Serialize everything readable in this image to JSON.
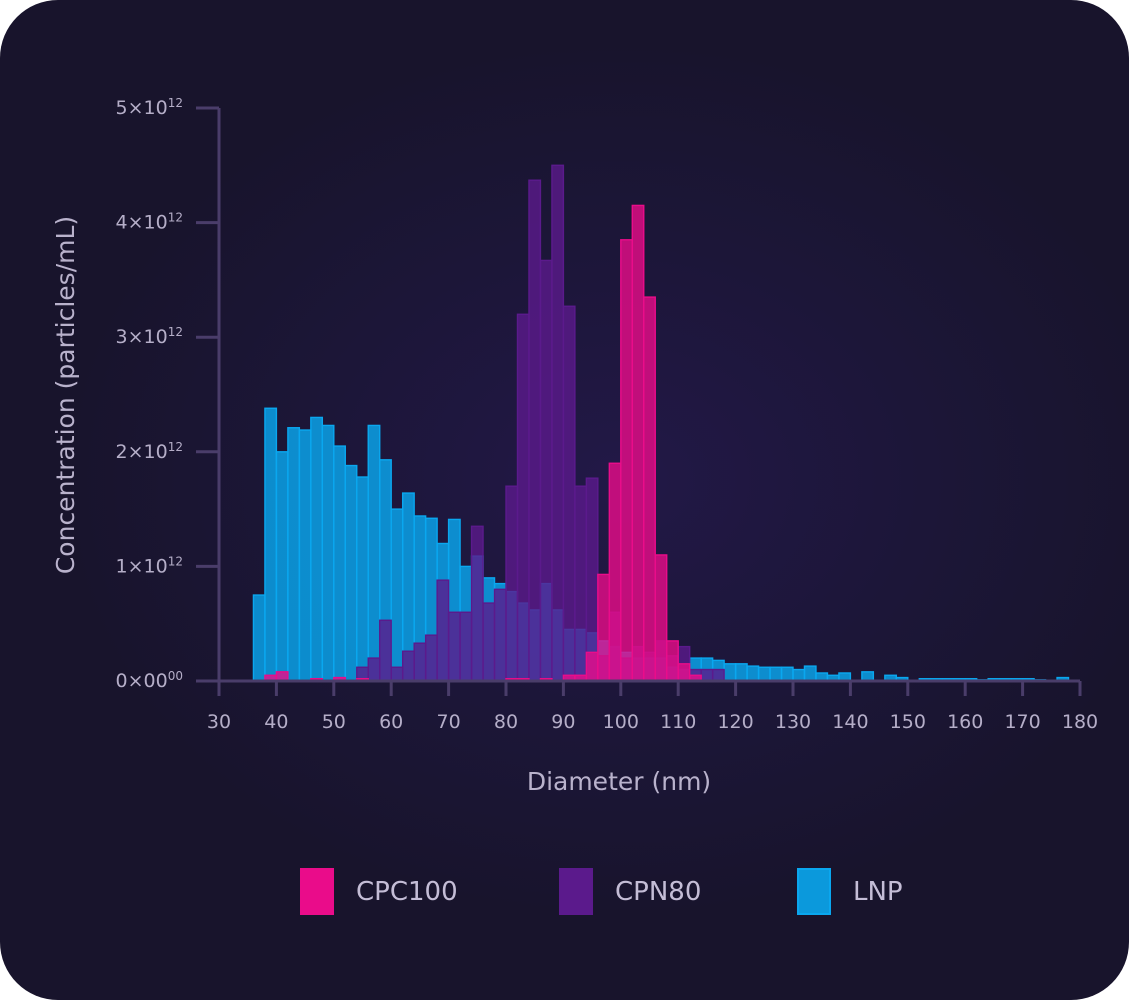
{
  "chart_data": {
    "type": "bar",
    "subtype": "overlapping histogram",
    "xlabel": "Diameter (nm)",
    "ylabel": "Concentration (particles/mL)",
    "xlim": [
      30,
      180
    ],
    "ylim": [
      0,
      5000000000000.0
    ],
    "x_ticks": [
      "30",
      "40",
      "50",
      "60",
      "70",
      "80",
      "90",
      "100",
      "110",
      "120",
      "130",
      "140",
      "150",
      "160",
      "170",
      "180"
    ],
    "y_ticks": [
      {
        "value": 0,
        "label": "0×00",
        "sup": "00"
      },
      {
        "value": 1000000000000.0,
        "label": "1×10",
        "sup": "12"
      },
      {
        "value": 2000000000000.0,
        "label": "2×10",
        "sup": "12"
      },
      {
        "value": 3000000000000.0,
        "label": "3×10",
        "sup": "12"
      },
      {
        "value": 4000000000000.0,
        "label": "4×10",
        "sup": "12"
      },
      {
        "value": 5000000000000.0,
        "label": "5×10",
        "sup": "12"
      }
    ],
    "bin_start": 36,
    "bin_width": 2,
    "legend_position": "bottom",
    "series": [
      {
        "name": "LNP",
        "color": "#0aa7ef",
        "values": [
          0.75,
          2.38,
          2.0,
          2.21,
          2.19,
          2.3,
          2.23,
          2.05,
          1.88,
          1.78,
          2.23,
          1.93,
          1.5,
          1.64,
          1.44,
          1.42,
          1.2,
          1.41,
          1.0,
          1.09,
          0.9,
          0.85,
          0.78,
          0.68,
          0.62,
          0.85,
          0.62,
          0.45,
          0.45,
          0.42,
          0.35,
          0.3,
          0.25,
          0.2,
          0.2,
          0.2,
          0.12,
          0.1,
          0.2,
          0.2,
          0.18,
          0.15,
          0.15,
          0.13,
          0.12,
          0.12,
          0.12,
          0.1,
          0.13,
          0.07,
          0.05,
          0.07,
          0.0,
          0.08,
          0.0,
          0.05,
          0.03,
          0.0,
          0.02,
          0.02,
          0.02,
          0.02,
          0.02,
          0.01,
          0.02,
          0.02,
          0.02,
          0.02,
          0.01,
          0.0,
          0.03,
          0.0,
          0.0,
          0.0,
          0.0
        ]
      },
      {
        "name": "CPN80",
        "color": "#5b1a8c",
        "values": [
          0,
          0,
          0,
          0,
          0,
          0,
          0,
          0,
          0,
          0.12,
          0.2,
          0.53,
          0.12,
          0.26,
          0.33,
          0.4,
          0.88,
          0.6,
          0.6,
          1.35,
          0.68,
          0.8,
          1.7,
          3.2,
          4.37,
          3.67,
          4.5,
          3.27,
          1.7,
          1.77,
          0.22,
          0.6,
          0.2,
          0.3,
          0.25,
          0.35,
          0.22,
          0.3,
          0.1,
          0.1,
          0.1,
          0,
          0,
          0,
          0,
          0,
          0,
          0,
          0,
          0,
          0,
          0,
          0,
          0,
          0,
          0,
          0,
          0,
          0,
          0,
          0,
          0,
          0,
          0,
          0,
          0,
          0,
          0,
          0,
          0,
          0,
          0,
          0,
          0,
          0
        ]
      },
      {
        "name": "CPC100",
        "color": "#ea0c8a",
        "values": [
          0,
          0.05,
          0.08,
          0,
          0,
          0.02,
          0,
          0.03,
          0,
          0.02,
          0,
          0,
          0,
          0,
          0,
          0,
          0,
          0,
          0,
          0,
          0,
          0,
          0.02,
          0.02,
          0,
          0.02,
          0,
          0.05,
          0.05,
          0.25,
          0.93,
          1.9,
          3.85,
          4.15,
          3.35,
          1.1,
          0.35,
          0.15,
          0.05,
          0,
          0,
          0,
          0,
          0,
          0,
          0,
          0,
          0,
          0,
          0,
          0,
          0,
          0,
          0,
          0,
          0,
          0,
          0,
          0,
          0,
          0,
          0,
          0,
          0,
          0,
          0,
          0,
          0,
          0,
          0,
          0,
          0,
          0,
          0,
          0
        ]
      }
    ],
    "legend": [
      {
        "name": "CPC100",
        "color": "#ea0c8a"
      },
      {
        "name": "CPN80",
        "color": "#5b1a8c"
      },
      {
        "name": "LNP",
        "color": "#0aa7ef"
      }
    ]
  }
}
